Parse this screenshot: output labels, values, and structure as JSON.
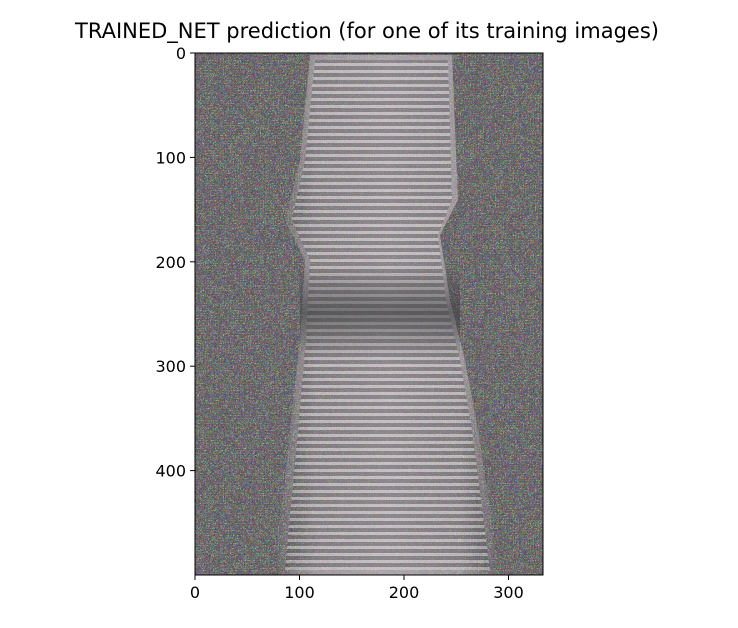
{
  "chart_data": {
    "type": "heatmap",
    "title": "TRAINED_NET prediction (for one of its training images)",
    "xlabel": "",
    "ylabel": "",
    "image_size": {
      "width": 333,
      "height": 500
    },
    "xlim": [
      0,
      333
    ],
    "ylim": [
      500,
      0
    ],
    "x_ticks": [
      0,
      100,
      200,
      300
    ],
    "y_ticks": [
      0,
      100,
      200,
      300,
      400
    ],
    "x_tick_labels": [
      "0",
      "100",
      "200",
      "300"
    ],
    "y_tick_labels": [
      "0",
      "100",
      "200",
      "300",
      "400"
    ],
    "grid": false,
    "legend": "none",
    "colors": {
      "noise_base": "#8a7f86",
      "column_light": "#c9c0c6",
      "dark_band": "#3c3e3f"
    }
  }
}
